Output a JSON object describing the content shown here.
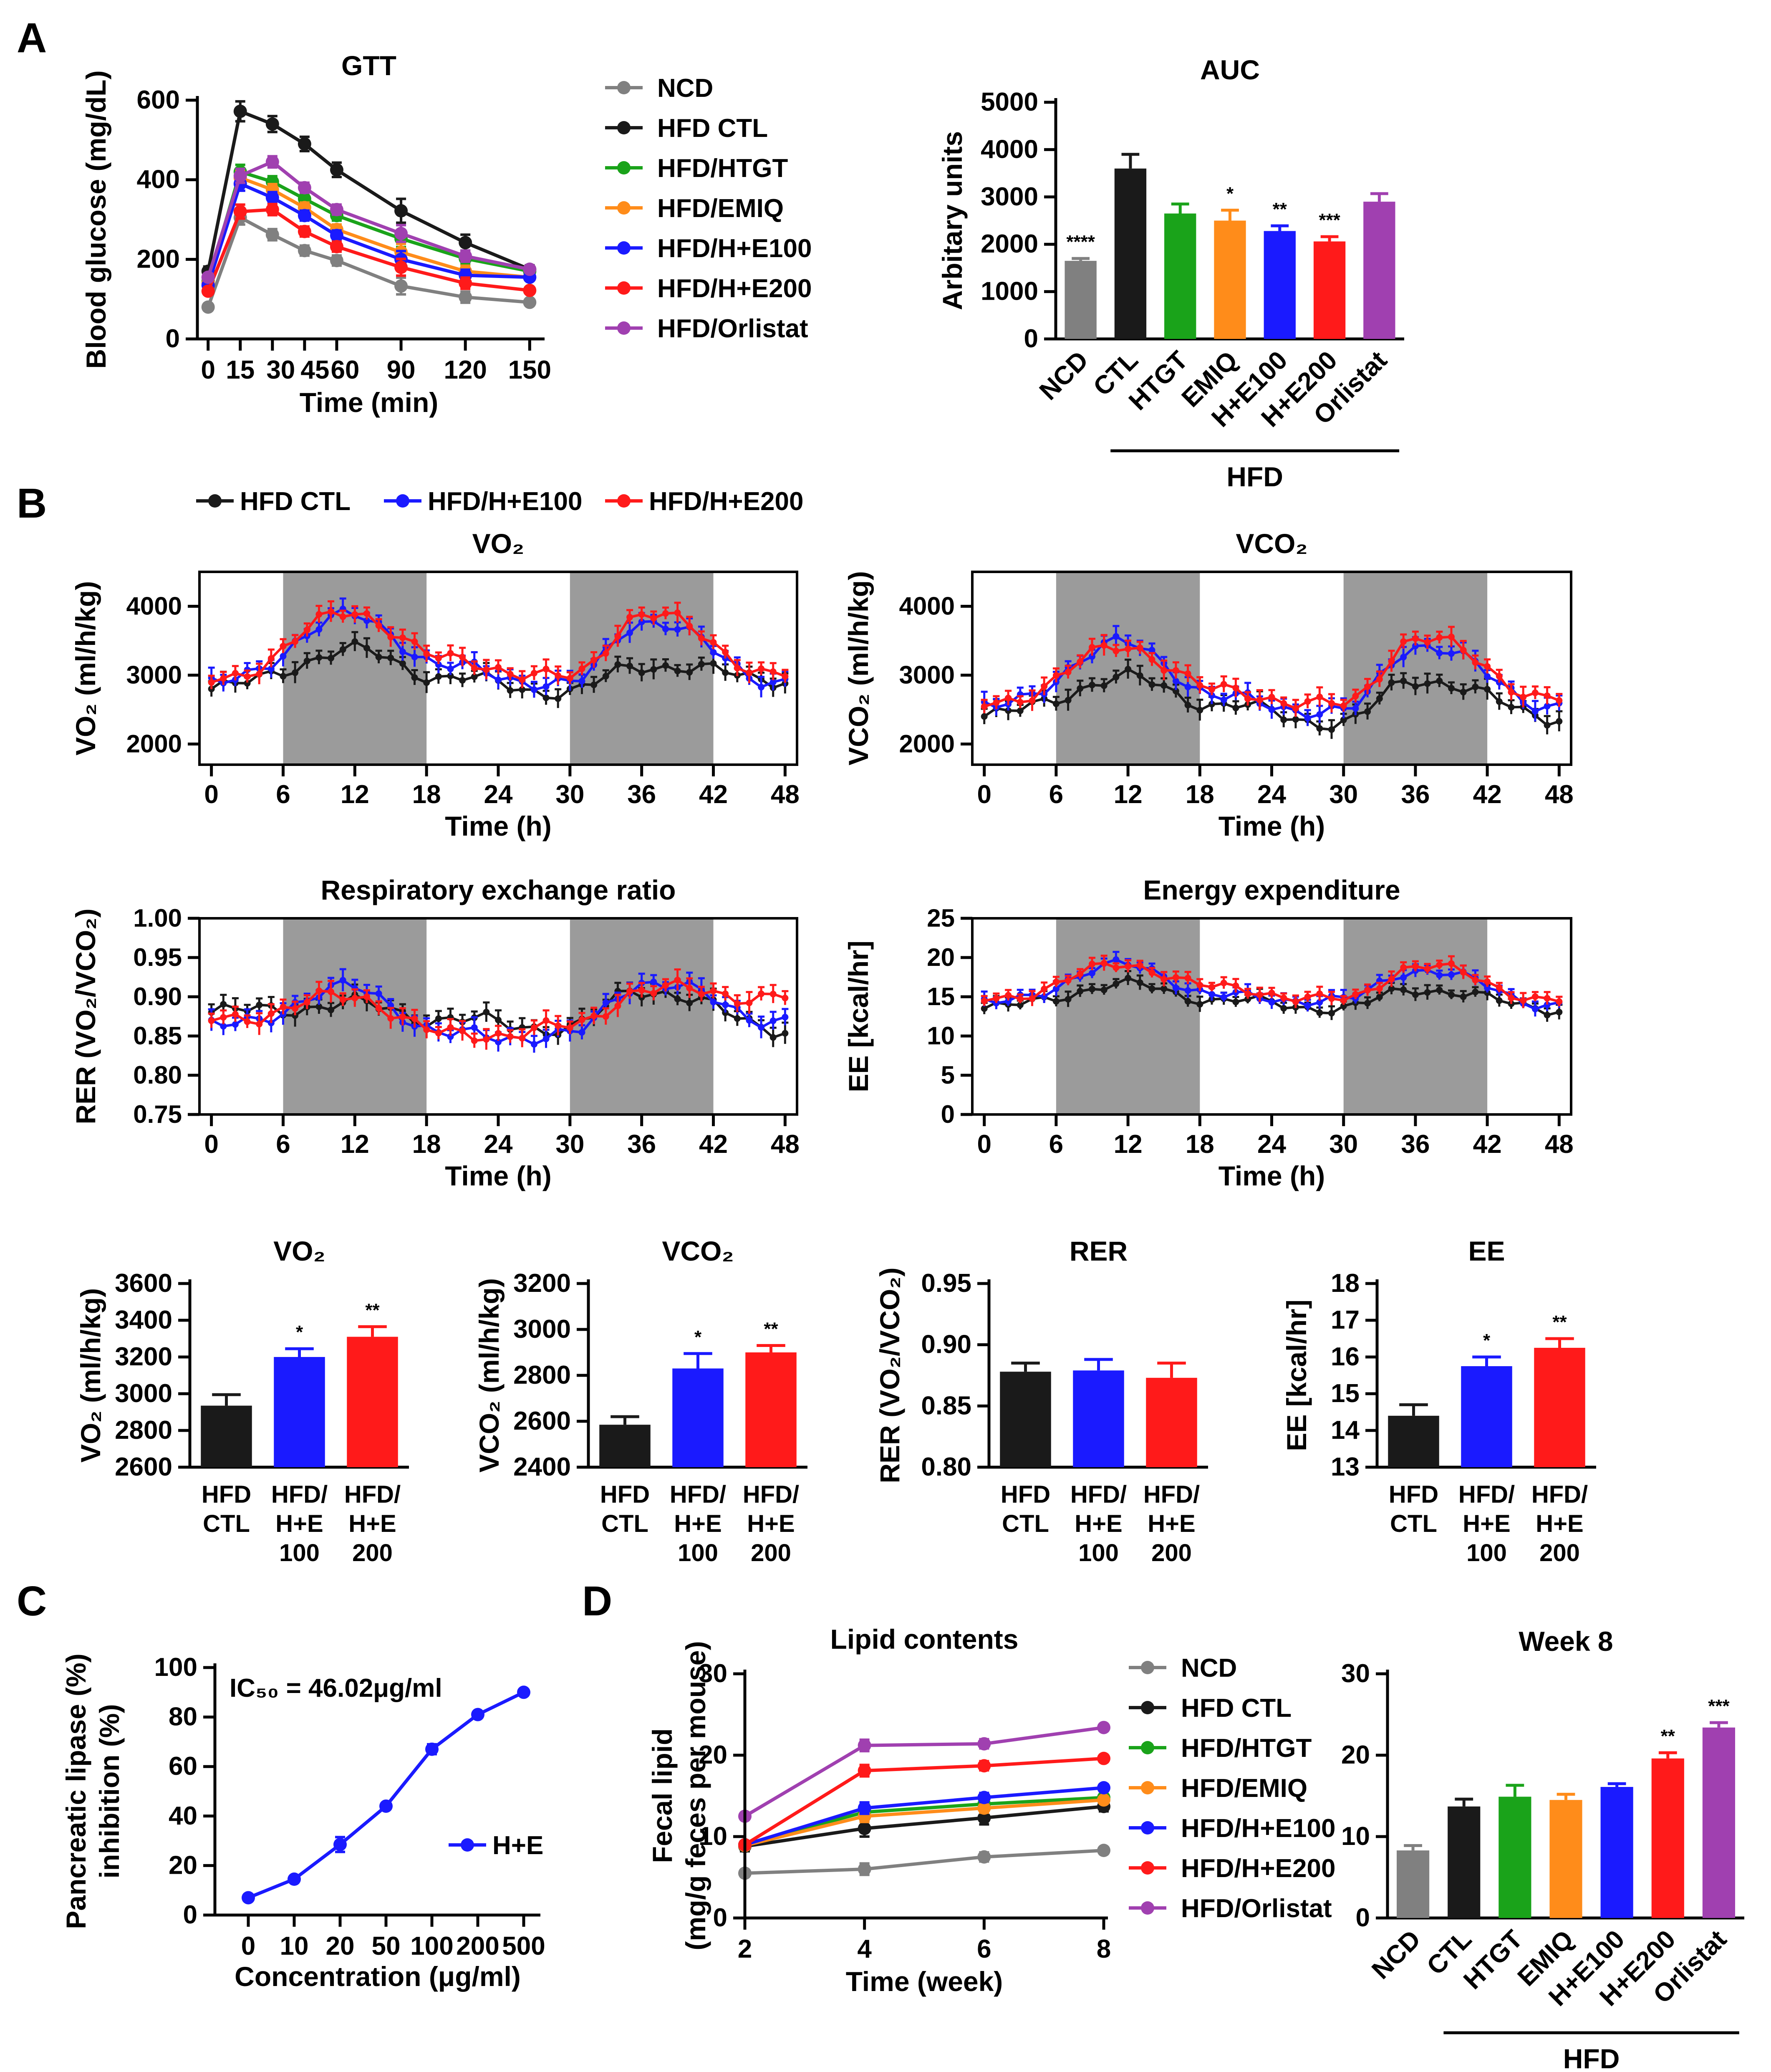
{
  "colors": {
    "NCD": "#808080",
    "HFD CTL": "#1a1a1a",
    "HFD/HTGT": "#1aa31a",
    "HFD/EMIQ": "#ff8c1a",
    "HFD/H+E100": "#1a1aff",
    "HFD/H+E200": "#ff1a1a",
    "HFD/Orlistat": "#a040b0",
    "dark": "#9b9b9b"
  },
  "panel_labels": {
    "a": "A",
    "b": "B",
    "c": "C",
    "d": "D"
  },
  "chart_data": [
    {
      "id": "gtt",
      "type": "line",
      "title": "GTT",
      "xlabel": "Time (min)",
      "ylabel": "Blood glucose (mg/dL)",
      "xlim": [
        -5,
        155
      ],
      "ylim": [
        0,
        600
      ],
      "xticks": [
        0,
        15,
        30,
        45,
        60,
        90,
        120,
        150
      ],
      "yticks": [
        0,
        200,
        400,
        600
      ],
      "x": [
        0,
        15,
        30,
        45,
        60,
        90,
        120,
        150
      ],
      "series": [
        {
          "name": "NCD",
          "values": [
            80,
            305,
            262,
            222,
            197,
            133,
            105,
            92
          ]
        },
        {
          "name": "HFD CTL",
          "values": [
            170,
            572,
            540,
            490,
            425,
            322,
            242,
            175
          ]
        },
        {
          "name": "HFD/HTGT",
          "values": [
            145,
            420,
            395,
            352,
            310,
            252,
            202,
            170
          ]
        },
        {
          "name": "HFD/EMIQ",
          "values": [
            140,
            405,
            375,
            330,
            275,
            218,
            170,
            155
          ]
        },
        {
          "name": "HFD/H+E100",
          "values": [
            135,
            390,
            355,
            310,
            260,
            200,
            160,
            155
          ]
        },
        {
          "name": "HFD/H+E200",
          "values": [
            120,
            320,
            325,
            270,
            232,
            180,
            140,
            122
          ]
        },
        {
          "name": "HFD/Orlistat",
          "values": [
            155,
            410,
            445,
            380,
            325,
            265,
            208,
            175
          ]
        }
      ],
      "errors": [
        12,
        25,
        20,
        18,
        18,
        30,
        20,
        10
      ]
    },
    {
      "id": "auc",
      "type": "bar",
      "title": "AUC",
      "ylabel": "Arbitary units",
      "ylim": [
        0,
        5000
      ],
      "yticks": [
        0,
        1000,
        2000,
        3000,
        4000,
        5000
      ],
      "categories": [
        "NCD",
        "CTL",
        "HTGT",
        "EMIQ",
        "H+E100",
        "H+E200",
        "Orlistat"
      ],
      "values": [
        1650,
        3600,
        2650,
        2500,
        2280,
        2060,
        2900
      ],
      "errors": [
        50,
        300,
        200,
        220,
        110,
        100,
        170
      ],
      "stars": [
        "****",
        "",
        "",
        "*",
        "**",
        "***",
        ""
      ],
      "series_colors": [
        "NCD",
        "HFD CTL",
        "HFD/HTGT",
        "HFD/EMIQ",
        "HFD/H+E100",
        "HFD/H+E200",
        "HFD/Orlistat"
      ],
      "group_label": "HFD"
    },
    {
      "id": "vo2_time",
      "type": "line",
      "title": "VO₂",
      "xlabel": "Time (h)",
      "ylabel": "VO₂ (ml/h/kg)",
      "xlim": [
        -1,
        49
      ],
      "ylim": [
        1700,
        4500
      ],
      "xticks": [
        0,
        6,
        12,
        18,
        24,
        30,
        36,
        42,
        48
      ],
      "yticks": [
        2000,
        3000,
        4000
      ],
      "dark_phases": [
        [
          6,
          18
        ],
        [
          30,
          42
        ]
      ],
      "series": [
        {
          "name": "HFD CTL",
          "base": [
            2800,
            3350,
            2950,
            2750,
            3150,
            2950
          ]
        },
        {
          "name": "HFD/H+E100",
          "base": [
            2850,
            3850,
            3100,
            2850,
            3800,
            2900
          ]
        },
        {
          "name": "HFD/H+E200",
          "base": [
            2900,
            3900,
            3200,
            2950,
            3900,
            3000
          ]
        }
      ]
    },
    {
      "id": "vco2_time",
      "type": "line",
      "title": "VCO₂",
      "xlabel": "Time (h)",
      "ylabel": "VCO₂ (ml/h/kg)",
      "xlim": [
        -1,
        49
      ],
      "ylim": [
        1700,
        4500
      ],
      "xticks": [
        0,
        6,
        12,
        18,
        24,
        30,
        36,
        42,
        48
      ],
      "yticks": [
        2000,
        3000,
        4000
      ],
      "dark_phases": [
        [
          6,
          18
        ],
        [
          30,
          42
        ]
      ],
      "series": [
        {
          "name": "HFD CTL",
          "base": [
            2400,
            2950,
            2550,
            2300,
            2950,
            2400
          ]
        },
        {
          "name": "HFD/H+E100",
          "base": [
            2500,
            3450,
            2650,
            2450,
            3450,
            2550
          ]
        },
        {
          "name": "HFD/H+E200",
          "base": [
            2550,
            3400,
            2750,
            2550,
            3550,
            2650
          ]
        }
      ]
    },
    {
      "id": "rer_time",
      "type": "line",
      "title": "Respiratory exchange ratio",
      "xlabel": "Time (h)",
      "ylabel": "RER (VO₂/VCO₂)",
      "xlim": [
        -1,
        49
      ],
      "ylim": [
        0.75,
        1.0
      ],
      "xticks": [
        0,
        6,
        12,
        18,
        24,
        30,
        36,
        42,
        48
      ],
      "yticks": [
        0.75,
        0.8,
        0.85,
        0.9,
        0.95,
        1.0
      ],
      "dark_phases": [
        [
          6,
          18
        ],
        [
          30,
          42
        ]
      ],
      "series": [
        {
          "name": "HFD CTL",
          "base": [
            0.88,
            0.89,
            0.87,
            0.86,
            0.91,
            0.86
          ]
        },
        {
          "name": "HFD/H+E100",
          "base": [
            0.86,
            0.91,
            0.85,
            0.85,
            0.92,
            0.87
          ]
        },
        {
          "name": "HFD/H+E200",
          "base": [
            0.87,
            0.9,
            0.85,
            0.86,
            0.91,
            0.9
          ]
        }
      ]
    },
    {
      "id": "ee_time",
      "type": "line",
      "title": "Energy expenditure",
      "xlabel": "Time (h)",
      "ylabel": "EE [kcal/hr]",
      "xlim": [
        -1,
        49
      ],
      "ylim": [
        0,
        25
      ],
      "xticks": [
        0,
        6,
        12,
        18,
        24,
        30,
        36,
        42,
        48
      ],
      "yticks": [
        0,
        5,
        10,
        15,
        20,
        25
      ],
      "dark_phases": [
        [
          6,
          18
        ],
        [
          30,
          42
        ]
      ],
      "series": [
        {
          "name": "HFD CTL",
          "base": [
            13.5,
            16.5,
            14.5,
            13.5,
            16,
            13.5
          ]
        },
        {
          "name": "HFD/H+E100",
          "base": [
            14,
            19,
            15,
            14.5,
            18.5,
            14
          ]
        },
        {
          "name": "HFD/H+E200",
          "base": [
            14.5,
            19,
            16,
            14.5,
            19,
            14.5
          ]
        }
      ]
    },
    {
      "id": "vo2_bar",
      "type": "bar",
      "title": "VO₂",
      "ylabel": "VO₂ (ml/h/kg)",
      "ylim": [
        2600,
        3600
      ],
      "yticks": [
        2600,
        2800,
        3000,
        3200,
        3400,
        3600
      ],
      "categories": [
        [
          "HFD",
          "CTL"
        ],
        [
          "HFD/",
          "H+E",
          "100"
        ],
        [
          "HFD/",
          "H+E",
          "200"
        ]
      ],
      "values": [
        2935,
        3200,
        3310
      ],
      "errors": [
        60,
        45,
        55
      ],
      "stars": [
        "",
        "*",
        "**"
      ],
      "series_colors": [
        "HFD CTL",
        "HFD/H+E100",
        "HFD/H+E200"
      ]
    },
    {
      "id": "vco2_bar",
      "type": "bar",
      "title": "VCO₂",
      "ylabel": "VCO₂ (ml/h/kg)",
      "ylim": [
        2400,
        3200
      ],
      "yticks": [
        2400,
        2600,
        2800,
        3000,
        3200
      ],
      "categories": [
        [
          "HFD",
          "CTL"
        ],
        [
          "HFD/",
          "H+E",
          "100"
        ],
        [
          "HFD/",
          "H+E",
          "200"
        ]
      ],
      "values": [
        2585,
        2830,
        2900
      ],
      "errors": [
        35,
        65,
        30
      ],
      "stars": [
        "",
        "*",
        "**"
      ],
      "series_colors": [
        "HFD CTL",
        "HFD/H+E100",
        "HFD/H+E200"
      ]
    },
    {
      "id": "rer_bar",
      "type": "bar",
      "title": "RER",
      "ylabel": "RER (VO₂/VCO₂)",
      "ylim": [
        0.8,
        0.95
      ],
      "yticks": [
        0.8,
        0.85,
        0.9,
        0.95
      ],
      "tick_decimals": 2,
      "categories": [
        [
          "HFD",
          "CTL"
        ],
        [
          "HFD/",
          "H+E",
          "100"
        ],
        [
          "HFD/",
          "H+E",
          "200"
        ]
      ],
      "values": [
        0.878,
        0.879,
        0.873
      ],
      "errors": [
        0.007,
        0.009,
        0.012
      ],
      "stars": [
        "",
        "",
        ""
      ],
      "series_colors": [
        "HFD CTL",
        "HFD/H+E100",
        "HFD/H+E200"
      ]
    },
    {
      "id": "ee_bar",
      "type": "bar",
      "title": "EE",
      "ylabel": "EE [kcal/hr]",
      "ylim": [
        13,
        18
      ],
      "yticks": [
        13,
        14,
        15,
        16,
        17,
        18
      ],
      "categories": [
        [
          "HFD",
          "CTL"
        ],
        [
          "HFD/",
          "H+E",
          "100"
        ],
        [
          "HFD/",
          "H+E",
          "200"
        ]
      ],
      "values": [
        14.4,
        15.75,
        16.25
      ],
      "errors": [
        0.3,
        0.25,
        0.25
      ],
      "stars": [
        "",
        "*",
        "**"
      ],
      "series_colors": [
        "HFD CTL",
        "HFD/H+E100",
        "HFD/H+E200"
      ]
    },
    {
      "id": "lipase",
      "type": "line",
      "title": "",
      "xlabel": "Concentration (μg/ml)",
      "ylabel": "Pancreatic lipase inhibition (%)",
      "ylim": [
        0,
        100
      ],
      "yticks": [
        0,
        20,
        40,
        60,
        80,
        100
      ],
      "categories": [
        "0",
        "10",
        "20",
        "50",
        "100",
        "200",
        "500"
      ],
      "values": [
        7,
        14.5,
        28.5,
        44,
        67,
        81,
        90
      ],
      "errors": [
        0.5,
        1,
        3,
        1,
        2,
        1,
        1
      ],
      "annotation": "IC₅₀ = 46.02μg/ml",
      "series_name": "H+E"
    },
    {
      "id": "lipid",
      "type": "line",
      "title": "Lipid contents",
      "xlabel": "Time (week)",
      "ylabel": "Fecal lipid (mg/g feces per mouse)",
      "xlim": [
        2,
        8
      ],
      "ylim": [
        0,
        30
      ],
      "xticks": [
        2,
        4,
        6,
        8
      ],
      "yticks": [
        0,
        10,
        20,
        30
      ],
      "x": [
        2,
        4,
        6,
        8
      ],
      "series": [
        {
          "name": "NCD",
          "values": [
            5.5,
            6,
            7.5,
            8.3
          ]
        },
        {
          "name": "HFD CTL",
          "values": [
            8.8,
            11,
            12.3,
            13.7
          ]
        },
        {
          "name": "HFD/HTGT",
          "values": [
            9,
            13,
            14,
            14.8
          ]
        },
        {
          "name": "HFD/EMIQ",
          "values": [
            8.9,
            12.5,
            13.5,
            14.5
          ]
        },
        {
          "name": "HFD/H+E100",
          "values": [
            9,
            13.5,
            14.8,
            16
          ]
        },
        {
          "name": "HFD/H+E200",
          "values": [
            9,
            18.1,
            18.7,
            19.6
          ]
        },
        {
          "name": "HFD/Orlistat",
          "values": [
            12.5,
            21.2,
            21.4,
            23.4
          ]
        }
      ],
      "errors": [
        0.6,
        1.0,
        0.8,
        0.6
      ]
    },
    {
      "id": "week8",
      "type": "bar",
      "title": "Week 8",
      "ylim": [
        0,
        30
      ],
      "yticks": [
        0,
        10,
        20,
        30
      ],
      "categories": [
        "NCD",
        "CTL",
        "HTGT",
        "EMIQ",
        "H+E100",
        "H+E200",
        "Orlistat"
      ],
      "values": [
        8.3,
        13.7,
        14.9,
        14.5,
        16.1,
        19.6,
        23.4
      ],
      "errors": [
        0.6,
        0.9,
        1.4,
        0.7,
        0.4,
        0.7,
        0.6
      ],
      "stars": [
        "",
        "",
        "",
        "",
        "",
        "**",
        "***"
      ],
      "series_colors": [
        "NCD",
        "HFD CTL",
        "HFD/HTGT",
        "HFD/EMIQ",
        "HFD/H+E100",
        "HFD/H+E200",
        "HFD/Orlistat"
      ],
      "group_label": "HFD"
    }
  ]
}
